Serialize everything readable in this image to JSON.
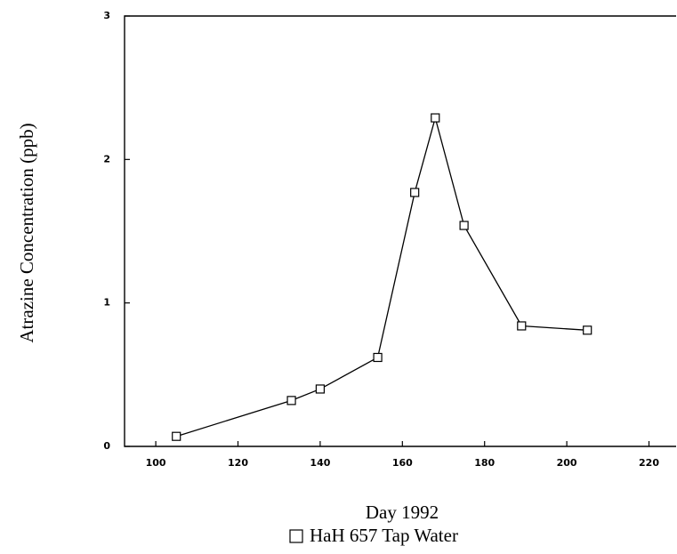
{
  "chart_data": {
    "type": "line",
    "y_label": "Atrazine Concentration (ppb)",
    "x_label": "Day 1992",
    "x": [
      105,
      133,
      140,
      154,
      163,
      168,
      175,
      189,
      205
    ],
    "series": [
      {
        "name": "HaH 657 Tap Water",
        "color": "#000000",
        "values": [
          0.07,
          0.32,
          0.4,
          0.62,
          1.77,
          2.29,
          1.54,
          0.84,
          0.81
        ]
      }
    ],
    "xlim": [
      92.4,
      226.6
    ],
    "xticks": [
      100,
      120,
      140,
      160,
      180,
      200,
      220
    ],
    "ylim": [
      0,
      3
    ],
    "yticks": [
      0,
      1,
      2,
      3
    ]
  }
}
